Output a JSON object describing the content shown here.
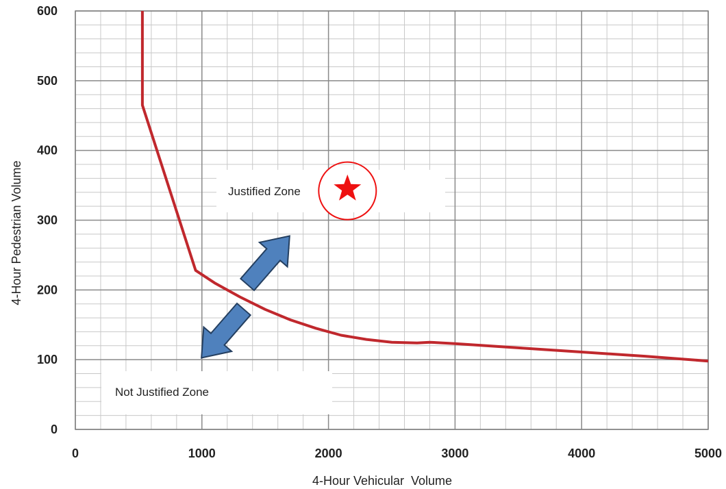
{
  "chart_data": {
    "type": "line",
    "xlabel": "4-Hour Vehicular  Volume",
    "ylabel": "4-Hour Pedestrian Volume",
    "xlim": [
      0,
      5000
    ],
    "ylim": [
      0,
      600
    ],
    "x_ticks": [
      0,
      1000,
      2000,
      3000,
      4000,
      5000
    ],
    "y_ticks": [
      0,
      100,
      200,
      300,
      400,
      500,
      600
    ],
    "x_tick_labels": [
      "0",
      "1000",
      "2000",
      "3000",
      "4000",
      "5000"
    ],
    "y_tick_labels": [
      "0",
      "100",
      "200",
      "300",
      "400",
      "500",
      "600"
    ],
    "grid": true,
    "series": [
      {
        "color": "#c0282d",
        "x": [
          530,
          530,
          950,
          1100,
          1300,
          1500,
          1700,
          1900,
          2100,
          2300,
          2500,
          2700,
          2800,
          3000,
          3500,
          4000,
          4500,
          5000
        ],
        "y": [
          600,
          465,
          228,
          210,
          190,
          172,
          157,
          145,
          135,
          129,
          125,
          124,
          125,
          123,
          117,
          111,
          105,
          98
        ]
      }
    ],
    "annotations": {
      "justified_zone": "Justified Zone",
      "not_justified_zone": "Not Justified Zone"
    },
    "marker": {
      "x": 2150,
      "y": 345,
      "color": "#ee1111"
    }
  }
}
